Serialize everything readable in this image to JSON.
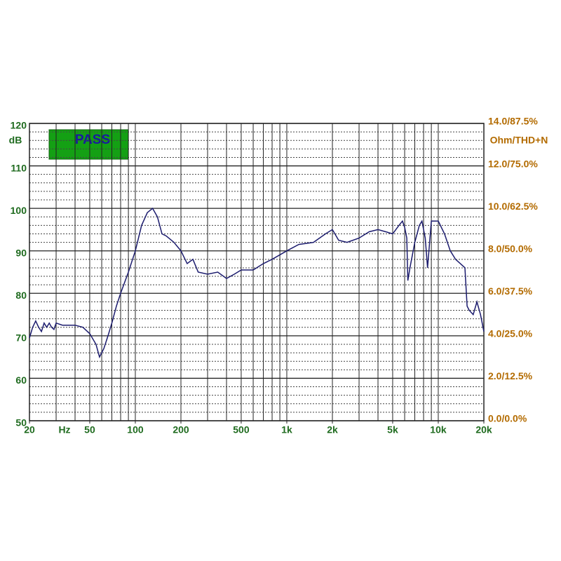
{
  "chart_data": {
    "type": "line",
    "log_x": true,
    "annotation": "PASS",
    "y_label": "dB",
    "y2_label": "Ohm/THD+N",
    "x_label": "Hz",
    "xlim": [
      20,
      20000
    ],
    "xticks": [
      20,
      50,
      100,
      200,
      500,
      {
        "value": 1000,
        "label": "1k"
      },
      {
        "value": 2000,
        "label": "2k"
      },
      {
        "value": 5000,
        "label": "5k"
      },
      {
        "value": 10000,
        "label": "10k"
      },
      {
        "value": 20000,
        "label": "20k"
      }
    ],
    "xgrid": [
      30,
      40,
      50,
      60,
      70,
      80,
      90,
      100,
      200,
      300,
      400,
      500,
      600,
      700,
      800,
      900,
      1000,
      2000,
      3000,
      4000,
      5000,
      6000,
      7000,
      8000,
      9000,
      10000
    ],
    "ylim": [
      50,
      120
    ],
    "yticks": [
      50,
      60,
      70,
      80,
      90,
      100,
      110,
      120
    ],
    "yminor": [
      52,
      54,
      56,
      58,
      62,
      64,
      66,
      68,
      72,
      74,
      76,
      78,
      82,
      84,
      86,
      88,
      92,
      94,
      96,
      98,
      102,
      104,
      106,
      108,
      112,
      114,
      116,
      118
    ],
    "y2lim": [
      0,
      14
    ],
    "y2ticks": [
      {
        "value": 0,
        "label": "0.0/0.0%"
      },
      {
        "value": 2,
        "label": "2.0/12.5%"
      },
      {
        "value": 4,
        "label": "4.0/25.0%"
      },
      {
        "value": 6,
        "label": "6.0/37.5%"
      },
      {
        "value": 8,
        "label": "8.0/50.0%"
      },
      {
        "value": 10,
        "label": "10.0/62.5%"
      },
      {
        "value": 12,
        "label": "12.0/75.0%"
      },
      {
        "value": 14,
        "label": "14.0/87.5%"
      }
    ],
    "x": [
      20,
      21,
      22,
      23,
      24,
      25,
      26,
      27,
      28,
      29,
      30,
      33,
      36,
      40,
      45,
      50,
      55,
      58,
      62,
      66,
      70,
      75,
      80,
      90,
      100,
      110,
      120,
      130,
      140,
      150,
      160,
      180,
      200,
      220,
      240,
      260,
      300,
      350,
      400,
      450,
      500,
      600,
      700,
      800,
      1000,
      1200,
      1500,
      1800,
      2000,
      2200,
      2500,
      3000,
      3500,
      4000,
      4500,
      5000,
      5500,
      5800,
      6000,
      6200,
      6300,
      6500,
      7000,
      7500,
      7800,
      8200,
      8500,
      9000,
      10000,
      11000,
      12000,
      13000,
      14000,
      15000,
      15500,
      16000,
      17000,
      18000,
      19000,
      20000
    ],
    "series": [
      {
        "color": "#1c1c6e",
        "values": [
          69.5,
          72,
          73.5,
          72,
          71,
          73,
          72,
          73,
          72,
          71.5,
          73,
          72.5,
          72.5,
          72.5,
          72,
          70.5,
          68,
          65,
          67,
          70,
          73,
          77,
          80,
          85,
          90,
          96,
          99,
          100,
          98,
          94,
          93.5,
          92,
          90,
          87,
          88,
          85,
          84.5,
          85,
          83.5,
          84.5,
          85.5,
          85.5,
          87,
          88,
          90,
          91.5,
          92,
          94,
          95,
          92.5,
          92,
          93,
          94.5,
          95,
          94.5,
          94,
          96,
          97,
          95.5,
          93,
          83,
          86,
          92,
          96,
          97,
          93,
          86,
          97,
          97,
          94,
          90,
          88,
          87,
          86,
          77,
          76,
          75,
          78,
          75,
          71
        ]
      }
    ]
  }
}
